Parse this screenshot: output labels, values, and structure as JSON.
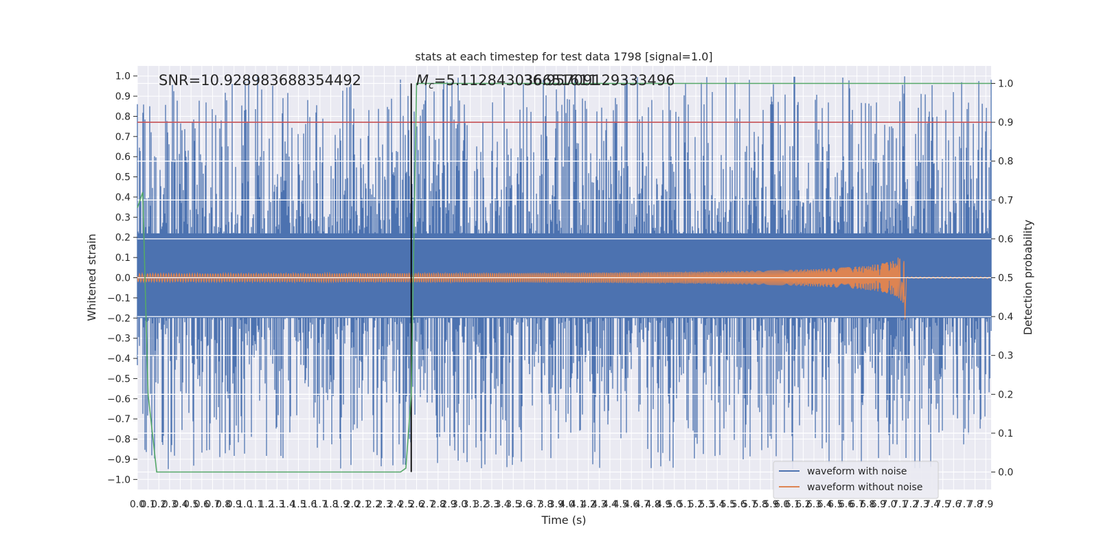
{
  "chart_data": {
    "type": "line",
    "title": "stats at each timestep for test data 1798 [signal=1.0]",
    "xlabel": "Time (s)",
    "ylabel": "Whitened strain",
    "y2label": "Detection probability",
    "xlim": [
      0.0,
      7.95
    ],
    "ylim": [
      -1.05,
      1.05
    ],
    "y2lim": [
      -0.045,
      1.045
    ],
    "x_ticks": [
      0.0,
      0.1,
      0.2,
      0.3,
      0.4,
      0.5,
      0.6,
      0.7,
      0.8,
      0.9,
      1.0,
      1.1,
      1.2,
      1.3,
      1.4,
      1.5,
      1.6,
      1.7,
      1.8,
      1.9,
      2.0,
      2.1,
      2.2,
      2.3,
      2.4,
      2.5,
      2.6,
      2.7,
      2.8,
      2.9,
      3.0,
      3.1,
      3.2,
      3.3,
      3.4,
      3.5,
      3.6,
      3.7,
      3.8,
      3.9,
      4.0,
      4.1,
      4.2,
      4.3,
      4.4,
      4.5,
      4.6,
      4.7,
      4.8,
      4.9,
      5.0,
      5.1,
      5.2,
      5.3,
      5.4,
      5.5,
      5.6,
      5.7,
      5.8,
      5.9,
      6.0,
      6.1,
      6.2,
      6.3,
      6.4,
      6.5,
      6.6,
      6.7,
      6.8,
      6.9,
      7.0,
      7.1,
      7.2,
      7.3,
      7.4,
      7.5,
      7.6,
      7.7,
      7.8,
      7.9
    ],
    "y_ticks": [
      -1.0,
      -0.9,
      -0.8,
      -0.7,
      -0.6,
      -0.5,
      -0.4,
      -0.3,
      -0.2,
      -0.1,
      0.0,
      0.1,
      0.2,
      0.3,
      0.4,
      0.5,
      0.6,
      0.7,
      0.8,
      0.9,
      1.0
    ],
    "y2_ticks": [
      0.0,
      0.1,
      0.2,
      0.3,
      0.4,
      0.5,
      0.6,
      0.7,
      0.8,
      0.9,
      1.0
    ],
    "annotations": {
      "snr": "SNR=10.928983688354492",
      "mc_prefix": "M",
      "mc_sub": "c",
      "mc_value": "=5.112843036651611",
      "overlap": "36.95709129333496"
    },
    "threshold": {
      "axis": "y2",
      "value": 0.9,
      "color": "#c44e52"
    },
    "merger_time": 2.55,
    "series": [
      {
        "name": "waveform with noise",
        "color": "#4c72b0",
        "axis": "y",
        "amplitude_envelope": [
          -0.95,
          1.0
        ]
      },
      {
        "name": "waveform without noise",
        "color": "#dd8452",
        "axis": "y",
        "chirp_start": 0.0,
        "chirp_end": 7.15,
        "peak_amplitude": 0.29,
        "initial_amplitude": 0.02
      },
      {
        "name": "detection probability",
        "color": "#55a868",
        "axis": "y2",
        "x": [
          0.0,
          0.05,
          0.1,
          0.18,
          0.2,
          2.45,
          2.5,
          2.55,
          2.6,
          7.95
        ],
        "values": [
          0.68,
          0.72,
          0.2,
          0.0,
          0.0,
          0.0,
          0.01,
          0.2,
          1.0,
          1.0
        ]
      }
    ],
    "legend": {
      "position": "bottom-right",
      "entries": [
        "waveform with noise",
        "waveform without noise"
      ]
    }
  }
}
